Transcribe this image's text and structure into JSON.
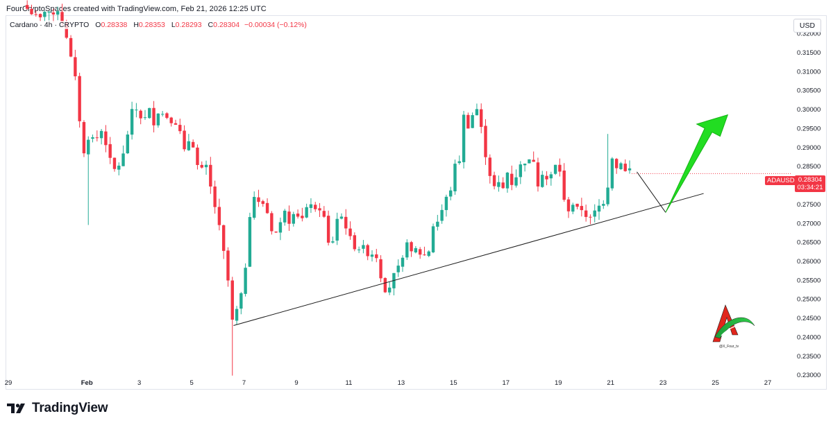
{
  "header": {
    "attribution": "FourCryptoSpaces created with TradingView.com, Feb 21, 2026 12:25 UTC"
  },
  "legend": {
    "symbol": "Cardano",
    "interval": "4h",
    "exchange": "CRYPTO",
    "open_label": "O",
    "open": "0.28338",
    "high_label": "H",
    "high": "0.28353",
    "low_label": "L",
    "low": "0.28293",
    "close_label": "C",
    "close": "0.28304",
    "change": "−0.00034 (−0.12%)"
  },
  "currency": "USD",
  "price_tag": {
    "symbol": "ADAUSD",
    "price": "0.28304",
    "countdown": "03:34:21"
  },
  "brand": {
    "name": "TradingView"
  },
  "watermark": {
    "handle": "@X_Four_tv"
  },
  "colors": {
    "up": "#22ab94",
    "down": "#f23645",
    "arrow": "#22dd22",
    "trendline": "#1a1a1a"
  },
  "chart_data": {
    "type": "candlestick",
    "title": "Cardano · 4h · CRYPTO",
    "x_unit": "days from Jan 29 00:00 UTC",
    "y_ticks": [
      "0.32000",
      "0.31500",
      "0.31000",
      "0.30500",
      "0.30000",
      "0.29500",
      "0.29000",
      "0.28500",
      "0.28000",
      "0.27500",
      "0.27000",
      "0.26500",
      "0.26000",
      "0.25500",
      "0.25000",
      "0.24500",
      "0.24000",
      "0.23500",
      "0.23000"
    ],
    "ylim": [
      0.2292,
      0.3246
    ],
    "x_ticks": [
      {
        "label": "29",
        "day": 0
      },
      {
        "label": "Feb",
        "day": 3
      },
      {
        "label": "3",
        "day": 5
      },
      {
        "label": "5",
        "day": 7
      },
      {
        "label": "7",
        "day": 9
      },
      {
        "label": "9",
        "day": 11
      },
      {
        "label": "11",
        "day": 13
      },
      {
        "label": "13",
        "day": 15
      },
      {
        "label": "15",
        "day": 17
      },
      {
        "label": "17",
        "day": 19
      },
      {
        "label": "19",
        "day": 21
      },
      {
        "label": "21",
        "day": 23
      },
      {
        "label": "23",
        "day": 25
      },
      {
        "label": "25",
        "day": 27
      },
      {
        "label": "27",
        "day": 29
      }
    ],
    "xlim": [
      -0.08,
      29.9
    ],
    "candle_spacing_days": 0.1667,
    "waypoints": [
      [
        0.72,
        0.3265
      ],
      [
        1.2,
        0.3235
      ],
      [
        1.45,
        0.327
      ],
      [
        1.7,
        0.324
      ],
      [
        1.9,
        0.3265
      ],
      [
        2.2,
        0.32
      ],
      [
        2.4,
        0.313
      ],
      [
        2.6,
        0.3065
      ],
      [
        2.75,
        0.295
      ],
      [
        2.95,
        0.285
      ],
      [
        3.1,
        0.296
      ],
      [
        3.25,
        0.2915
      ],
      [
        3.45,
        0.293
      ],
      [
        3.6,
        0.295
      ],
      [
        3.85,
        0.287
      ],
      [
        4.05,
        0.284
      ],
      [
        4.3,
        0.286
      ],
      [
        4.5,
        0.2905
      ],
      [
        4.65,
        0.299
      ],
      [
        4.9,
        0.3
      ],
      [
        5.05,
        0.298
      ],
      [
        5.25,
        0.2975
      ],
      [
        5.4,
        0.3
      ],
      [
        5.6,
        0.2955
      ],
      [
        5.8,
        0.302
      ],
      [
        5.95,
        0.2965
      ],
      [
        6.15,
        0.2995
      ],
      [
        6.3,
        0.2945
      ],
      [
        6.45,
        0.298
      ],
      [
        6.6,
        0.292
      ],
      [
        6.75,
        0.288
      ],
      [
        6.95,
        0.2935
      ],
      [
        7.15,
        0.288
      ],
      [
        7.3,
        0.282
      ],
      [
        7.5,
        0.2865
      ],
      [
        7.7,
        0.28
      ],
      [
        7.9,
        0.274
      ],
      [
        8.05,
        0.269
      ],
      [
        8.25,
        0.261
      ],
      [
        8.45,
        0.252
      ],
      [
        8.55,
        0.244
      ],
      [
        8.75,
        0.2475
      ],
      [
        8.9,
        0.251
      ],
      [
        9.1,
        0.261
      ],
      [
        9.25,
        0.275
      ],
      [
        9.45,
        0.278
      ],
      [
        9.6,
        0.274
      ],
      [
        9.8,
        0.276
      ],
      [
        9.95,
        0.2705
      ],
      [
        10.15,
        0.2665
      ],
      [
        10.4,
        0.27
      ],
      [
        10.55,
        0.274
      ],
      [
        10.75,
        0.27
      ],
      [
        10.95,
        0.2745
      ],
      [
        11.15,
        0.27
      ],
      [
        11.35,
        0.273
      ],
      [
        11.55,
        0.2755
      ],
      [
        11.75,
        0.2725
      ],
      [
        11.95,
        0.2745
      ],
      [
        12.1,
        0.27
      ],
      [
        12.3,
        0.261
      ],
      [
        12.5,
        0.271
      ],
      [
        12.7,
        0.272
      ],
      [
        12.9,
        0.269
      ],
      [
        13.1,
        0.265
      ],
      [
        13.3,
        0.263
      ],
      [
        13.5,
        0.264
      ],
      [
        13.7,
        0.262
      ],
      [
        13.9,
        0.262
      ],
      [
        14.1,
        0.261
      ],
      [
        14.3,
        0.253
      ],
      [
        14.5,
        0.252
      ],
      [
        14.65,
        0.2555
      ],
      [
        14.85,
        0.2575
      ],
      [
        15.05,
        0.26
      ],
      [
        15.25,
        0.2665
      ],
      [
        15.4,
        0.2615
      ],
      [
        15.6,
        0.2635
      ],
      [
        15.8,
        0.261
      ],
      [
        16.05,
        0.2625
      ],
      [
        16.25,
        0.2705
      ],
      [
        16.45,
        0.2705
      ],
      [
        16.65,
        0.276
      ],
      [
        16.85,
        0.2775
      ],
      [
        17.05,
        0.285
      ],
      [
        17.25,
        0.287
      ],
      [
        17.4,
        0.299
      ],
      [
        17.55,
        0.2955
      ],
      [
        17.75,
        0.299
      ],
      [
        17.95,
        0.3005
      ],
      [
        18.15,
        0.29
      ],
      [
        18.3,
        0.286
      ],
      [
        18.5,
        0.279
      ],
      [
        18.7,
        0.2805
      ],
      [
        18.9,
        0.279
      ],
      [
        19.05,
        0.2835
      ],
      [
        19.25,
        0.28
      ],
      [
        19.45,
        0.2835
      ],
      [
        19.65,
        0.2865
      ],
      [
        19.85,
        0.286
      ],
      [
        20.05,
        0.287
      ],
      [
        20.2,
        0.28
      ],
      [
        20.4,
        0.2835
      ],
      [
        20.6,
        0.281
      ],
      [
        20.8,
        0.2835
      ],
      [
        21.0,
        0.287
      ],
      [
        21.2,
        0.276
      ],
      [
        21.4,
        0.2735
      ],
      [
        21.6,
        0.2755
      ],
      [
        21.8,
        0.2725
      ],
      [
        21.95,
        0.2745
      ],
      [
        22.15,
        0.27
      ],
      [
        22.3,
        0.272
      ],
      [
        22.5,
        0.274
      ],
      [
        22.7,
        0.2755
      ],
      [
        22.85,
        0.2765
      ],
      [
        23.0,
        0.289
      ],
      [
        23.2,
        0.284
      ],
      [
        23.35,
        0.287
      ],
      [
        23.55,
        0.2835
      ],
      [
        23.7,
        0.2845
      ],
      [
        23.85,
        0.283
      ]
    ],
    "annotations": [
      {
        "type": "trendline",
        "from": [
          8.6,
          0.243
        ],
        "to": [
          26.55,
          0.2778
        ]
      },
      {
        "type": "projection-line",
        "from": [
          24.0,
          0.2835
        ],
        "to": [
          25.1,
          0.2728
        ]
      },
      {
        "type": "arrow",
        "from": [
          25.1,
          0.2728
        ],
        "to": [
          27.15,
          0.3
        ],
        "color": "#22dd22"
      }
    ]
  }
}
